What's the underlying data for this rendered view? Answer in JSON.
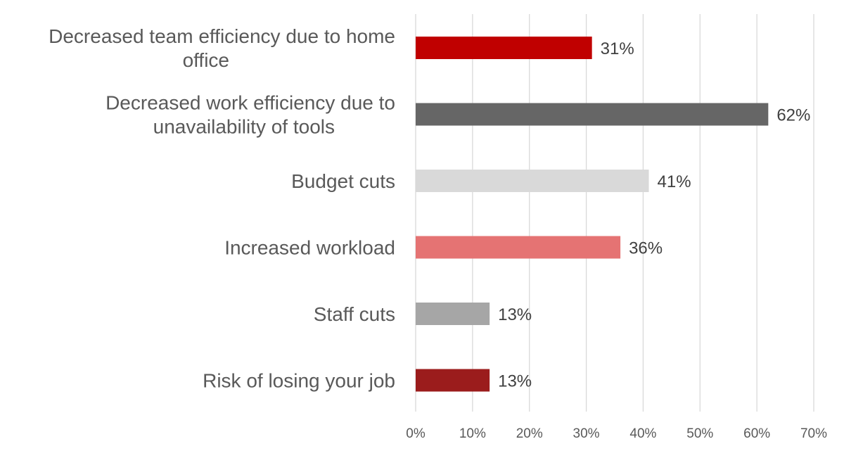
{
  "chart_data": {
    "type": "bar",
    "orientation": "horizontal",
    "categories": [
      [
        "Decreased team efficiency due to home",
        "office"
      ],
      [
        "Decreased work efficiency due to",
        "unavailability of tools"
      ],
      [
        "Budget cuts"
      ],
      [
        "Increased workload"
      ],
      [
        "Staff cuts"
      ],
      [
        "Risk of losing your job"
      ]
    ],
    "values": [
      31,
      62,
      41,
      36,
      13,
      13
    ],
    "value_labels": [
      "31%",
      "62%",
      "41%",
      "36%",
      "13%",
      "13%"
    ],
    "bar_colors": [
      "#c00000",
      "#666666",
      "#d9d9d9",
      "#e57373",
      "#a6a6a6",
      "#9b1c1c"
    ],
    "xlim": [
      0,
      70
    ],
    "xticks": [
      0,
      10,
      20,
      30,
      40,
      50,
      60,
      70
    ],
    "xtick_labels": [
      "0%",
      "10%",
      "20%",
      "30%",
      "40%",
      "50%",
      "60%",
      "70%"
    ],
    "grid": "vertical",
    "title": "",
    "xlabel": "",
    "ylabel": ""
  }
}
